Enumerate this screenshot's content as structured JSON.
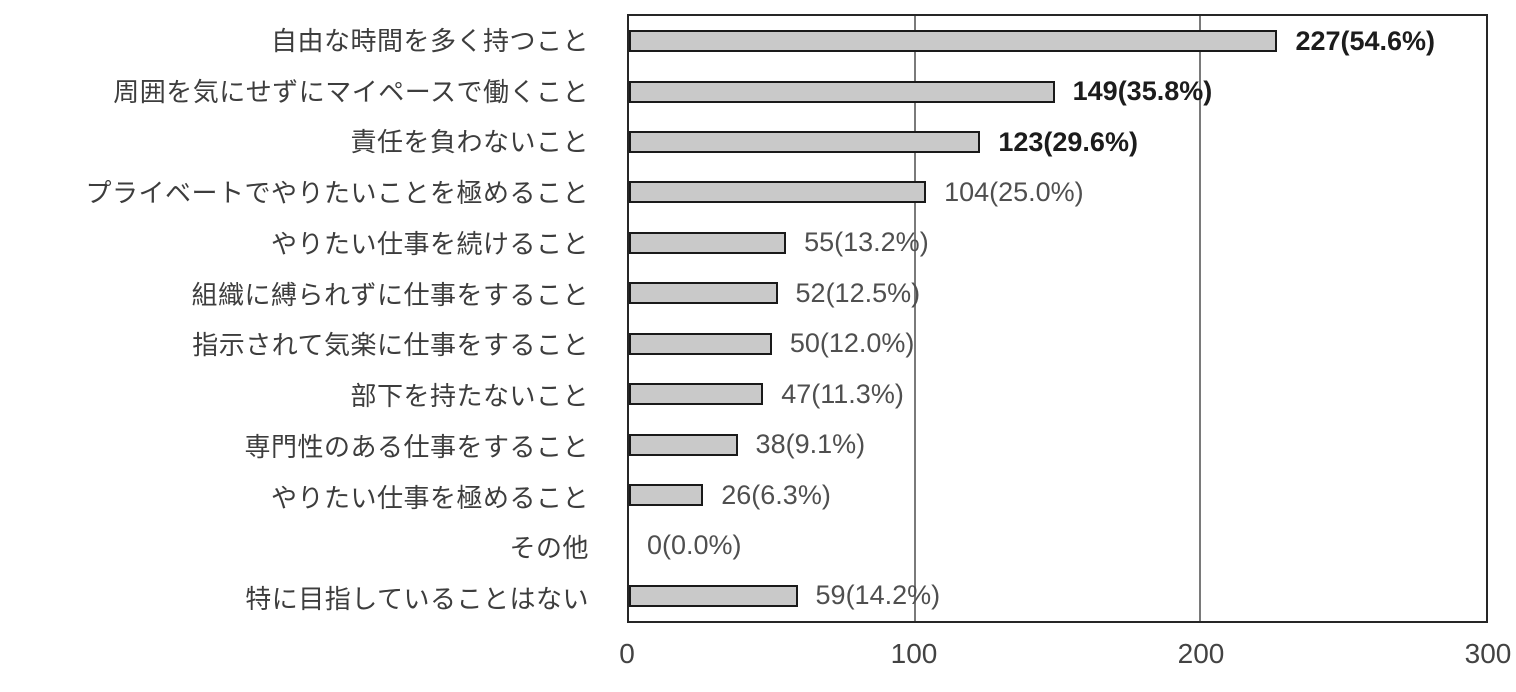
{
  "chart_data": {
    "type": "bar",
    "orientation": "horizontal",
    "title": "",
    "xlabel": "",
    "ylabel": "",
    "xlim": [
      0,
      300
    ],
    "x_ticks": [
      "0",
      "100",
      "200",
      "300"
    ],
    "x_tick_values": [
      0,
      100,
      200,
      300
    ],
    "gridlines_x": [
      100,
      200
    ],
    "legend": "none",
    "bar_fill_color": "#c9c9c9",
    "bar_border_color": "#1a1a1a",
    "gridline_color": "#7a7a7a",
    "categories": [
      "自由な時間を多く持つこと",
      "周囲を気にせずにマイペースで働くこと",
      "責任を負わないこと",
      "プライベートでやりたいことを極めること",
      "やりたい仕事を続けること",
      "組織に縛られずに仕事をすること",
      "指示されて気楽に仕事をすること",
      "部下を持たないこと",
      "専門性のある仕事をすること",
      "やりたい仕事を極めること",
      "その他",
      "特に目指していることはない"
    ],
    "values": [
      227,
      149,
      123,
      104,
      55,
      52,
      50,
      47,
      38,
      26,
      0,
      59
    ],
    "percentages": [
      54.6,
      35.8,
      29.6,
      25.0,
      13.2,
      12.5,
      12.0,
      11.3,
      9.1,
      6.3,
      0.0,
      14.2
    ],
    "value_labels": [
      "227(54.6%)",
      "149(35.8%)",
      "123(29.6%)",
      "104(25.0%)",
      "55(13.2%)",
      "52(12.5%)",
      "50(12.0%)",
      "47(11.3%)",
      "38(9.1%)",
      "26(6.3%)",
      "0(0.0%)",
      "59(14.2%)"
    ],
    "emphasized": [
      true,
      true,
      true,
      false,
      false,
      false,
      false,
      false,
      false,
      false,
      false,
      false
    ]
  }
}
